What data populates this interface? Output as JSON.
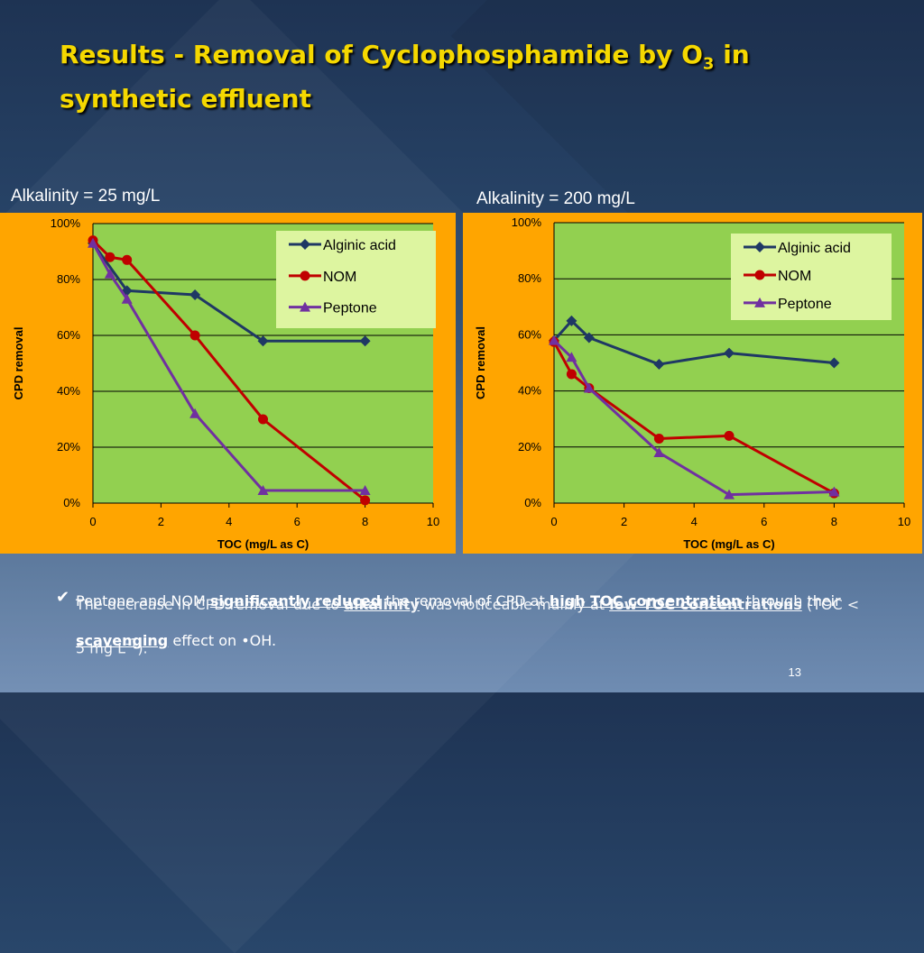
{
  "slide": {
    "title_part1": "Results - Removal of Cyclophosphamide by O",
    "title_sub": "3",
    "title_part2": " in synthetic effluent",
    "number": "13"
  },
  "charts_labels": [
    "Alkalinity = 25 mg/L",
    "Alkalinity = 200 mg/L"
  ],
  "body": {
    "bullet_icon": "checkmark-icon",
    "text1": {
      "p1": "Peptone and NOM ",
      "p2": "significantly reduced",
      "p3": " the removal of CPD at ",
      "p4": "high TOC concentration",
      "p5": " through their ",
      "p6": "scavenging",
      "p7": " effect on •OH."
    },
    "text2": {
      "p1": "The decrease in CPD removal due to ",
      "p2": "alkalinity",
      "p3": " was noticeable mainly at ",
      "p4": "low TOC concentrations",
      "p5": " (TOC < 5 mg L",
      "p6": "-1",
      "p7": ")."
    }
  },
  "colors": {
    "panel": "#ffa500",
    "plot": "#92d050",
    "legend_bg": "#ddf5a0",
    "title": "#f5d800"
  },
  "chart_data": [
    {
      "type": "line",
      "title": "",
      "xlabel": "TOC (mg/L as C)",
      "ylabel": "CPD removal",
      "xlim": [
        0,
        10
      ],
      "ylim": [
        0,
        1
      ],
      "xticks": [
        "0",
        "2",
        "4",
        "6",
        "8",
        "10"
      ],
      "yticks": [
        "0%",
        "20%",
        "40%",
        "60%",
        "80%",
        "100%"
      ],
      "grid": "horizontal",
      "legend_position": "top-right",
      "series": [
        {
          "name": "Alginic acid",
          "color": "#1f3864",
          "marker": "diamond",
          "x": [
            0,
            1,
            3,
            5,
            8
          ],
          "y": [
            0.93,
            0.76,
            0.745,
            0.58,
            0.58
          ]
        },
        {
          "name": "NOM",
          "color": "#c00000",
          "marker": "circle",
          "x": [
            0,
            0.5,
            1,
            3,
            5,
            8
          ],
          "y": [
            0.94,
            0.88,
            0.87,
            0.6,
            0.3,
            0.01
          ]
        },
        {
          "name": "Peptone",
          "color": "#7030a0",
          "marker": "triangle",
          "x": [
            0,
            0.5,
            1,
            3,
            5,
            8
          ],
          "y": [
            0.93,
            0.82,
            0.73,
            0.32,
            0.045,
            0.045
          ]
        }
      ]
    },
    {
      "type": "line",
      "title": "",
      "xlabel": "TOC (mg/L as C)",
      "ylabel": "CPD removal",
      "xlim": [
        0,
        10
      ],
      "ylim": [
        0,
        1
      ],
      "xticks": [
        "0",
        "2",
        "4",
        "6",
        "8",
        "10"
      ],
      "yticks": [
        "0%",
        "20%",
        "40%",
        "60%",
        "80%",
        "100%"
      ],
      "grid": "horizontal",
      "legend_position": "top-right",
      "series": [
        {
          "name": "Alginic acid",
          "color": "#1f3864",
          "marker": "diamond",
          "x": [
            0,
            0.5,
            1,
            3,
            5,
            8
          ],
          "y": [
            0.58,
            0.65,
            0.59,
            0.495,
            0.535,
            0.5
          ]
        },
        {
          "name": "NOM",
          "color": "#c00000",
          "marker": "circle",
          "x": [
            0,
            0.5,
            1,
            3,
            5,
            8
          ],
          "y": [
            0.575,
            0.46,
            0.41,
            0.23,
            0.24,
            0.035
          ]
        },
        {
          "name": "Peptone",
          "color": "#7030a0",
          "marker": "triangle",
          "x": [
            0,
            0.5,
            1,
            3,
            5,
            8
          ],
          "y": [
            0.58,
            0.52,
            0.41,
            0.18,
            0.03,
            0.04
          ]
        }
      ]
    }
  ]
}
